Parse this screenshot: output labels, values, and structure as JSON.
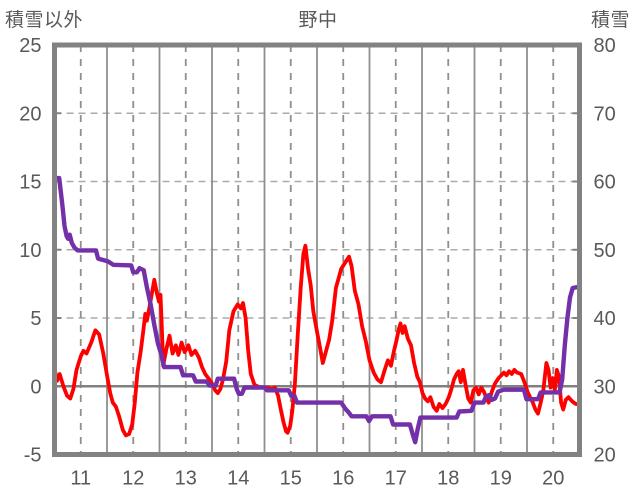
{
  "header": {
    "left_axis_title": "積雪以外",
    "title": "野中",
    "right_axis_title": "積雪"
  },
  "colors": {
    "temperature_line": "#FF0000",
    "snow_line": "#7430A8",
    "border": "#828282",
    "grid_major": "#8F8F8F",
    "grid_minor_dashed": "#8F8F8F",
    "grid_horizontal_dashed": "#ABABAB",
    "zero_line": "#808080",
    "tick_text": "#595959"
  },
  "chart_data": {
    "type": "line",
    "title": "野中",
    "left_axis": {
      "label": "積雪以外",
      "min": -5,
      "max": 25,
      "tick_step": 5,
      "ticks": [
        25,
        20,
        15,
        10,
        5,
        0,
        -5
      ]
    },
    "right_axis": {
      "label": "積雪",
      "min": 20,
      "max": 80,
      "tick_step": 10,
      "ticks": [
        80,
        70,
        60,
        50,
        40,
        30,
        20
      ]
    },
    "x_axis": {
      "min": 11,
      "max": 21,
      "tick_labels": [
        "11",
        "12",
        "13",
        "14",
        "15",
        "16",
        "17",
        "18",
        "19",
        "20"
      ],
      "minor_step": 0.5
    },
    "grid": {
      "horizontal": "dashed",
      "vertical_major": "solid",
      "vertical_minor": "dashed",
      "zero_line": "solid-bold"
    },
    "legend_position": "none",
    "series": [
      {
        "name": "積雪以外",
        "axis": "left",
        "color": "#FF0000",
        "points": [
          [
            11.0,
            1.3
          ],
          [
            11.05,
            0.4
          ],
          [
            11.1,
            0.9
          ],
          [
            11.17,
            0.0
          ],
          [
            11.24,
            -0.7
          ],
          [
            11.3,
            -0.9
          ],
          [
            11.36,
            -0.2
          ],
          [
            11.42,
            1.2
          ],
          [
            11.5,
            2.2
          ],
          [
            11.55,
            2.6
          ],
          [
            11.61,
            2.4
          ],
          [
            11.7,
            3.2
          ],
          [
            11.78,
            4.1
          ],
          [
            11.85,
            3.8
          ],
          [
            11.93,
            2.4
          ],
          [
            12.0,
            0.8
          ],
          [
            12.06,
            -0.5
          ],
          [
            12.11,
            -1.2
          ],
          [
            12.17,
            -1.5
          ],
          [
            12.23,
            -2.2
          ],
          [
            12.3,
            -3.2
          ],
          [
            12.36,
            -3.6
          ],
          [
            12.42,
            -3.5
          ],
          [
            12.48,
            -2.8
          ],
          [
            12.53,
            -1.2
          ],
          [
            12.58,
            1.0
          ],
          [
            12.64,
            2.5
          ],
          [
            12.69,
            4.0
          ],
          [
            12.73,
            5.3
          ],
          [
            12.76,
            4.8
          ],
          [
            12.81,
            5.8
          ],
          [
            12.86,
            6.9
          ],
          [
            12.9,
            7.8
          ],
          [
            12.95,
            6.8
          ],
          [
            12.99,
            6.2
          ],
          [
            13.02,
            6.7
          ],
          [
            13.05,
            3.8
          ],
          [
            13.07,
            1.5
          ],
          [
            13.13,
            2.7
          ],
          [
            13.19,
            3.7
          ],
          [
            13.25,
            2.4
          ],
          [
            13.31,
            3.0
          ],
          [
            13.36,
            2.3
          ],
          [
            13.42,
            3.2
          ],
          [
            13.48,
            2.5
          ],
          [
            13.55,
            3.0
          ],
          [
            13.61,
            2.3
          ],
          [
            13.68,
            2.6
          ],
          [
            13.75,
            2.1
          ],
          [
            13.81,
            1.4
          ],
          [
            13.87,
            0.9
          ],
          [
            13.93,
            0.6
          ],
          [
            14.0,
            0.2
          ],
          [
            14.06,
            -0.3
          ],
          [
            14.11,
            -0.5
          ],
          [
            14.16,
            -0.2
          ],
          [
            14.21,
            0.5
          ],
          [
            14.27,
            1.8
          ],
          [
            14.33,
            4.1
          ],
          [
            14.41,
            5.5
          ],
          [
            14.49,
            6.0
          ],
          [
            14.55,
            5.7
          ],
          [
            14.59,
            6.1
          ],
          [
            14.64,
            5.0
          ],
          [
            14.69,
            2.6
          ],
          [
            14.74,
            0.9
          ],
          [
            14.81,
            0.1
          ],
          [
            14.92,
            -0.1
          ],
          [
            15.05,
            -0.1
          ],
          [
            15.14,
            -0.2
          ],
          [
            15.2,
            -0.1
          ],
          [
            15.26,
            -0.7
          ],
          [
            15.31,
            -1.7
          ],
          [
            15.36,
            -2.6
          ],
          [
            15.41,
            -3.3
          ],
          [
            15.44,
            -3.4
          ],
          [
            15.49,
            -2.9
          ],
          [
            15.53,
            -1.8
          ],
          [
            15.58,
            0.2
          ],
          [
            15.63,
            3.6
          ],
          [
            15.69,
            7.2
          ],
          [
            15.74,
            9.7
          ],
          [
            15.78,
            10.3
          ],
          [
            15.83,
            8.6
          ],
          [
            15.88,
            7.4
          ],
          [
            15.93,
            5.5
          ],
          [
            16.0,
            4.0
          ],
          [
            16.06,
            2.8
          ],
          [
            16.11,
            1.7
          ],
          [
            16.16,
            2.4
          ],
          [
            16.23,
            3.4
          ],
          [
            16.29,
            4.8
          ],
          [
            16.36,
            7.2
          ],
          [
            16.46,
            8.6
          ],
          [
            16.56,
            9.2
          ],
          [
            16.61,
            9.5
          ],
          [
            16.66,
            8.8
          ],
          [
            16.72,
            7.0
          ],
          [
            16.79,
            6.0
          ],
          [
            16.86,
            4.4
          ],
          [
            16.93,
            3.3
          ],
          [
            17.0,
            1.9
          ],
          [
            17.08,
            1.0
          ],
          [
            17.15,
            0.5
          ],
          [
            17.22,
            0.3
          ],
          [
            17.29,
            1.2
          ],
          [
            17.35,
            1.9
          ],
          [
            17.41,
            1.5
          ],
          [
            17.46,
            2.5
          ],
          [
            17.51,
            3.3
          ],
          [
            17.56,
            4.2
          ],
          [
            17.59,
            4.6
          ],
          [
            17.63,
            3.9
          ],
          [
            17.67,
            4.4
          ],
          [
            17.73,
            3.5
          ],
          [
            17.79,
            3.0
          ],
          [
            17.85,
            1.7
          ],
          [
            17.91,
            0.7
          ],
          [
            17.96,
            0.3
          ],
          [
            18.01,
            -0.5
          ],
          [
            18.06,
            -0.9
          ],
          [
            18.11,
            -1.1
          ],
          [
            18.16,
            -0.8
          ],
          [
            18.22,
            -1.5
          ],
          [
            18.28,
            -1.8
          ],
          [
            18.33,
            -1.3
          ],
          [
            18.39,
            -1.6
          ],
          [
            18.45,
            -1.3
          ],
          [
            18.51,
            -0.8
          ],
          [
            18.56,
            -0.2
          ],
          [
            18.61,
            0.5
          ],
          [
            18.66,
            0.9
          ],
          [
            18.7,
            1.1
          ],
          [
            18.74,
            0.3
          ],
          [
            18.78,
            1.2
          ],
          [
            18.83,
            0.1
          ],
          [
            18.88,
            -0.9
          ],
          [
            18.93,
            -1.2
          ],
          [
            18.98,
            -0.3
          ],
          [
            19.03,
            -0.1
          ],
          [
            19.08,
            -0.6
          ],
          [
            19.13,
            -0.1
          ],
          [
            19.18,
            -0.4
          ],
          [
            19.23,
            -0.9
          ],
          [
            19.27,
            -1.2
          ],
          [
            19.33,
            -0.4
          ],
          [
            19.39,
            0.2
          ],
          [
            19.46,
            0.6
          ],
          [
            19.51,
            0.8
          ],
          [
            19.56,
            1.0
          ],
          [
            19.61,
            0.8
          ],
          [
            19.66,
            1.1
          ],
          [
            19.71,
            0.9
          ],
          [
            19.76,
            1.2
          ],
          [
            19.81,
            1.0
          ],
          [
            19.89,
            0.9
          ],
          [
            19.96,
            0.2
          ],
          [
            20.01,
            -0.4
          ],
          [
            20.06,
            -0.8
          ],
          [
            20.11,
            -1.2
          ],
          [
            20.16,
            -1.7
          ],
          [
            20.21,
            -2.0
          ],
          [
            20.26,
            -1.2
          ],
          [
            20.31,
            -0.3
          ],
          [
            20.37,
            1.7
          ],
          [
            20.41,
            1.2
          ],
          [
            20.45,
            -0.1
          ],
          [
            20.49,
            0.6
          ],
          [
            20.53,
            -0.3
          ],
          [
            20.57,
            1.2
          ],
          [
            20.61,
            0.7
          ],
          [
            20.65,
            -1.2
          ],
          [
            20.69,
            -1.7
          ],
          [
            20.74,
            -1.0
          ],
          [
            20.79,
            -0.8
          ],
          [
            20.86,
            -1.1
          ],
          [
            20.93,
            -1.3
          ],
          [
            21.0,
            -1.3
          ]
        ]
      },
      {
        "name": "積雪",
        "axis": "right",
        "color": "#7430A8",
        "points": [
          [
            11.0,
            60.5
          ],
          [
            11.09,
            60.5
          ],
          [
            11.12,
            58.5
          ],
          [
            11.15,
            56.5
          ],
          [
            11.19,
            53.5
          ],
          [
            11.23,
            52.0
          ],
          [
            11.26,
            51.6
          ],
          [
            11.29,
            52.2
          ],
          [
            11.33,
            51.0
          ],
          [
            11.38,
            50.3
          ],
          [
            11.44,
            49.9
          ],
          [
            11.79,
            49.9
          ],
          [
            11.83,
            48.7
          ],
          [
            12.02,
            48.3
          ],
          [
            12.12,
            47.8
          ],
          [
            12.46,
            47.7
          ],
          [
            12.5,
            46.7
          ],
          [
            12.57,
            46.7
          ],
          [
            12.62,
            47.3
          ],
          [
            12.7,
            47.0
          ],
          [
            12.76,
            44.5
          ],
          [
            12.83,
            42.0
          ],
          [
            12.9,
            39.0
          ],
          [
            12.97,
            36.3
          ],
          [
            13.04,
            34.5
          ],
          [
            13.09,
            32.8
          ],
          [
            13.4,
            32.8
          ],
          [
            13.45,
            31.6
          ],
          [
            13.64,
            31.6
          ],
          [
            13.69,
            30.7
          ],
          [
            13.9,
            30.7
          ],
          [
            13.95,
            30.1
          ],
          [
            14.07,
            30.1
          ],
          [
            14.11,
            31.1
          ],
          [
            14.42,
            31.1
          ],
          [
            14.47,
            29.6
          ],
          [
            14.51,
            28.9
          ],
          [
            14.57,
            28.9
          ],
          [
            14.62,
            29.8
          ],
          [
            15.0,
            29.8
          ],
          [
            15.05,
            29.4
          ],
          [
            15.46,
            29.4
          ],
          [
            15.51,
            28.6
          ],
          [
            15.57,
            28.6
          ],
          [
            15.62,
            27.6
          ],
          [
            16.46,
            27.6
          ],
          [
            16.53,
            26.8
          ],
          [
            16.6,
            26.2
          ],
          [
            16.66,
            25.6
          ],
          [
            16.94,
            25.6
          ],
          [
            16.99,
            24.9
          ],
          [
            17.05,
            25.6
          ],
          [
            17.4,
            25.6
          ],
          [
            17.45,
            24.4
          ],
          [
            17.77,
            24.4
          ],
          [
            17.82,
            23.0
          ],
          [
            17.87,
            21.8
          ],
          [
            17.92,
            23.8
          ],
          [
            17.97,
            25.4
          ],
          [
            18.66,
            25.4
          ],
          [
            18.71,
            26.3
          ],
          [
            18.94,
            26.4
          ],
          [
            19.0,
            27.6
          ],
          [
            19.17,
            27.6
          ],
          [
            19.22,
            28.5
          ],
          [
            19.28,
            28.7
          ],
          [
            19.33,
            28.0
          ],
          [
            19.39,
            28.2
          ],
          [
            19.45,
            29.2
          ],
          [
            19.55,
            29.5
          ],
          [
            19.94,
            29.5
          ],
          [
            19.99,
            28.1
          ],
          [
            20.21,
            28.1
          ],
          [
            20.26,
            29.1
          ],
          [
            20.62,
            29.1
          ],
          [
            20.67,
            31.0
          ],
          [
            20.72,
            36.0
          ],
          [
            20.77,
            40.0
          ],
          [
            20.82,
            43.0
          ],
          [
            20.87,
            44.4
          ],
          [
            21.0,
            44.6
          ]
        ]
      }
    ]
  }
}
